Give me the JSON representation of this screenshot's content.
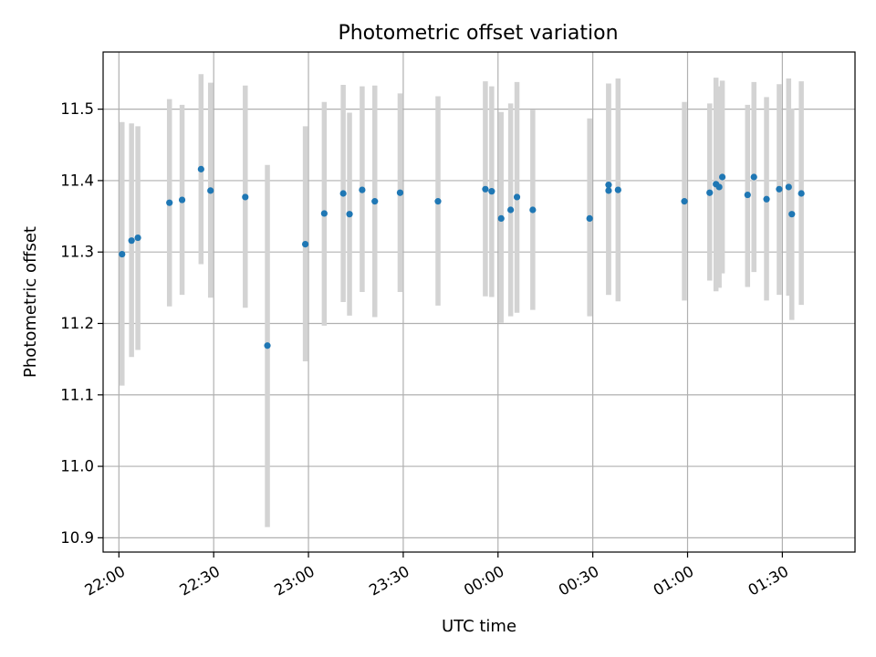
{
  "chart_data": {
    "type": "scatter",
    "title": "Photometric offset variation",
    "xlabel": "UTC time",
    "ylabel": "Photometric offset",
    "x_unit": "UTC time (HH:MM)",
    "xlim": [
      "21:55",
      "01:53"
    ],
    "ylim": [
      10.88,
      11.58
    ],
    "grid": true,
    "marker_color": "#1f77b4",
    "errorbar_color": "#d3d3d3",
    "x_ticks": [
      "22:00",
      "22:30",
      "23:00",
      "23:30",
      "00:00",
      "00:30",
      "01:00",
      "01:30"
    ],
    "y_ticks": [
      "10.9",
      "11.0",
      "11.1",
      "11.2",
      "11.3",
      "11.4",
      "11.5"
    ],
    "points": [
      {
        "x": "22:01",
        "y": 11.297,
        "low": 11.113,
        "high": 11.482
      },
      {
        "x": "22:04",
        "y": 11.316,
        "low": 11.153,
        "high": 11.48
      },
      {
        "x": "22:06",
        "y": 11.32,
        "low": 11.163,
        "high": 11.476
      },
      {
        "x": "22:16",
        "y": 11.369,
        "low": 11.224,
        "high": 11.514
      },
      {
        "x": "22:20",
        "y": 11.373,
        "low": 11.24,
        "high": 11.506
      },
      {
        "x": "22:26",
        "y": 11.416,
        "low": 11.283,
        "high": 11.549
      },
      {
        "x": "22:29",
        "y": 11.386,
        "low": 11.236,
        "high": 11.537
      },
      {
        "x": "22:40",
        "y": 11.377,
        "low": 11.222,
        "high": 11.533
      },
      {
        "x": "22:47",
        "y": 11.169,
        "low": 10.915,
        "high": 11.422
      },
      {
        "x": "22:59",
        "y": 11.311,
        "low": 11.147,
        "high": 11.476
      },
      {
        "x": "23:05",
        "y": 11.354,
        "low": 11.197,
        "high": 11.51
      },
      {
        "x": "23:11",
        "y": 11.382,
        "low": 11.23,
        "high": 11.534
      },
      {
        "x": "23:13",
        "y": 11.353,
        "low": 11.211,
        "high": 11.495
      },
      {
        "x": "23:17",
        "y": 11.387,
        "low": 11.244,
        "high": 11.532
      },
      {
        "x": "23:21",
        "y": 11.371,
        "low": 11.209,
        "high": 11.533
      },
      {
        "x": "23:29",
        "y": 11.383,
        "low": 11.244,
        "high": 11.522
      },
      {
        "x": "23:41",
        "y": 11.371,
        "low": 11.225,
        "high": 11.518
      },
      {
        "x": "23:56",
        "y": 11.388,
        "low": 11.238,
        "high": 11.539
      },
      {
        "x": "23:58",
        "y": 11.385,
        "low": 11.237,
        "high": 11.532
      },
      {
        "x": "00:01",
        "y": 11.347,
        "low": 11.201,
        "high": 11.496
      },
      {
        "x": "00:04",
        "y": 11.359,
        "low": 11.21,
        "high": 11.508
      },
      {
        "x": "00:06",
        "y": 11.377,
        "low": 11.215,
        "high": 11.538
      },
      {
        "x": "00:11",
        "y": 11.359,
        "low": 11.219,
        "high": 11.499
      },
      {
        "x": "00:29",
        "y": 11.347,
        "low": 11.21,
        "high": 11.487
      },
      {
        "x": "00:35",
        "y": 11.394,
        "low": 11.24,
        "high": 11.536
      },
      {
        "x": "00:35",
        "y": 11.386,
        "low": 11.24,
        "high": 11.536
      },
      {
        "x": "00:38",
        "y": 11.387,
        "low": 11.231,
        "high": 11.543
      },
      {
        "x": "00:59",
        "y": 11.371,
        "low": 11.232,
        "high": 11.51
      },
      {
        "x": "01:07",
        "y": 11.383,
        "low": 11.26,
        "high": 11.508
      },
      {
        "x": "01:09",
        "y": 11.395,
        "low": 11.245,
        "high": 11.544
      },
      {
        "x": "01:10",
        "y": 11.391,
        "low": 11.25,
        "high": 11.532
      },
      {
        "x": "01:11",
        "y": 11.405,
        "low": 11.27,
        "high": 11.54
      },
      {
        "x": "01:19",
        "y": 11.38,
        "low": 11.251,
        "high": 11.506
      },
      {
        "x": "01:21",
        "y": 11.405,
        "low": 11.272,
        "high": 11.538
      },
      {
        "x": "01:25",
        "y": 11.374,
        "low": 11.232,
        "high": 11.517
      },
      {
        "x": "01:29",
        "y": 11.388,
        "low": 11.24,
        "high": 11.535
      },
      {
        "x": "01:32",
        "y": 11.391,
        "low": 11.239,
        "high": 11.543
      },
      {
        "x": "01:33",
        "y": 11.353,
        "low": 11.205,
        "high": 11.501
      },
      {
        "x": "01:36",
        "y": 11.382,
        "low": 11.226,
        "high": 11.539
      }
    ]
  }
}
